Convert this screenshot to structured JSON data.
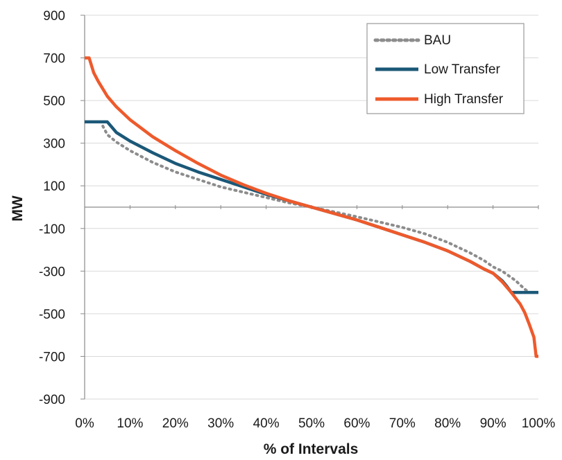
{
  "chart_data": {
    "type": "line",
    "title": "",
    "xlabel": "% of Intervals",
    "ylabel": "MW",
    "xlim": [
      0,
      100
    ],
    "ylim": [
      -900,
      900
    ],
    "x_ticks": [
      "0%",
      "10%",
      "20%",
      "30%",
      "40%",
      "50%",
      "60%",
      "70%",
      "80%",
      "90%",
      "100%"
    ],
    "y_ticks": [
      "900",
      "700",
      "500",
      "300",
      "100",
      "-100",
      "-300",
      "-500",
      "-700",
      "-900"
    ],
    "grid": "horizontal",
    "legend_position": "top-right",
    "series": [
      {
        "name": "BAU",
        "color": "#8c8c8c",
        "style": "dotted",
        "x": [
          4,
          5,
          7,
          10,
          15,
          20,
          25,
          30,
          35,
          40,
          45,
          50,
          55,
          60,
          65,
          70,
          75,
          80,
          85,
          88,
          90,
          92,
          94,
          95,
          96,
          97,
          98
        ],
        "y": [
          380,
          340,
          305,
          265,
          210,
          165,
          130,
          95,
          70,
          45,
          20,
          0,
          -22,
          -45,
          -70,
          -95,
          -125,
          -165,
          -215,
          -250,
          -280,
          -300,
          -330,
          -345,
          -365,
          -385,
          -400
        ]
      },
      {
        "name": "Low Transfer",
        "color": "#1b5878",
        "style": "solid",
        "x": [
          0,
          5,
          7,
          10,
          15,
          20,
          25,
          30,
          35,
          40,
          45,
          50,
          55,
          60,
          65,
          70,
          75,
          80,
          85,
          88,
          90,
          92,
          93,
          94,
          96,
          98,
          100
        ],
        "y": [
          400,
          400,
          350,
          310,
          255,
          205,
          165,
          130,
          95,
          60,
          30,
          0,
          -30,
          -60,
          -95,
          -130,
          -165,
          -205,
          -255,
          -290,
          -310,
          -345,
          -370,
          -400,
          -400,
          -400,
          -400
        ]
      },
      {
        "name": "High Transfer",
        "color": "#ee5a2c",
        "style": "solid",
        "x": [
          0,
          1,
          2,
          3,
          5,
          7,
          10,
          15,
          20,
          25,
          30,
          35,
          40,
          45,
          50,
          55,
          60,
          65,
          70,
          75,
          80,
          85,
          88,
          90,
          92,
          94,
          96,
          97,
          98,
          99,
          99.5,
          100
        ],
        "y": [
          700,
          700,
          630,
          590,
          520,
          470,
          410,
          330,
          265,
          205,
          150,
          105,
          65,
          30,
          0,
          -30,
          -60,
          -95,
          -130,
          -165,
          -205,
          -255,
          -290,
          -310,
          -350,
          -400,
          -455,
          -495,
          -550,
          -610,
          -700,
          -700
        ]
      }
    ]
  }
}
